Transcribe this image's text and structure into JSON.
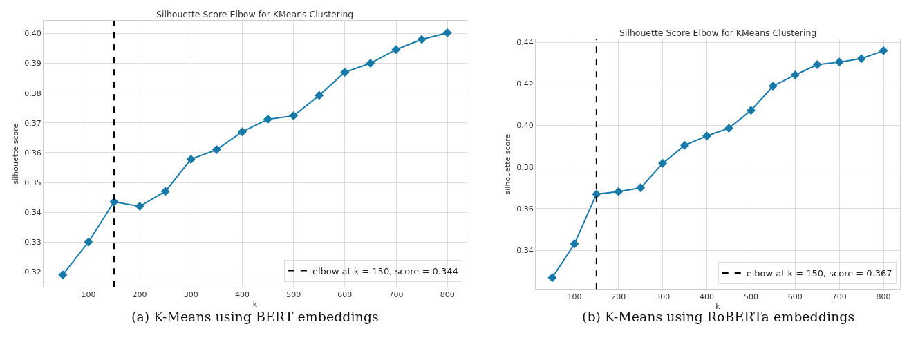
{
  "chart_data": [
    {
      "type": "line",
      "title": "Silhouette Score Elbow for KMeans Clustering",
      "xlabel": "k",
      "ylabel": "silhouette score",
      "x": [
        50,
        100,
        150,
        200,
        250,
        300,
        350,
        400,
        450,
        500,
        550,
        600,
        650,
        700,
        750,
        800
      ],
      "series": [
        {
          "color": "#1779a7",
          "values": [
            0.319,
            0.33,
            0.3435,
            0.342,
            0.347,
            0.3578,
            0.361,
            0.367,
            0.3712,
            0.3724,
            0.3792,
            0.387,
            0.39,
            0.3946,
            0.398,
            0.4002
          ]
        }
      ],
      "xlim": [
        12.5,
        837.5
      ],
      "ylim": [
        0.3149,
        0.4043
      ],
      "xticks": [
        100,
        200,
        300,
        400,
        500,
        600,
        700,
        800
      ],
      "yticks": [
        {
          "value": 0.32,
          "label": "0.32"
        },
        {
          "value": 0.33,
          "label": "0.33"
        },
        {
          "value": 0.34,
          "label": "0.34"
        },
        {
          "value": 0.35,
          "label": "0.35"
        },
        {
          "value": 0.36,
          "label": "0.36"
        },
        {
          "value": 0.37,
          "label": "0.37"
        },
        {
          "value": 0.38,
          "label": "0.38"
        },
        {
          "value": 0.39,
          "label": "0.39"
        },
        {
          "value": 0.4,
          "label": "0.40"
        }
      ],
      "grid": true,
      "marker": "diamond",
      "line_style": "solid",
      "legend": "bottom right",
      "ref_lines": [
        {
          "axis": "x",
          "value": 150,
          "label": "elbow at k = 150, score = 0.344",
          "color": "#000000",
          "line_style": "dashed"
        }
      ],
      "annotations": [
        "(a) K-Means using BERT embeddings"
      ]
    },
    {
      "type": "line",
      "title": "Silhouette Score Elbow for KMeans Clustering",
      "xlabel": "k",
      "ylabel": "silhouette score",
      "x": [
        50,
        100,
        150,
        200,
        250,
        300,
        350,
        400,
        450,
        500,
        550,
        600,
        650,
        700,
        750,
        800
      ],
      "series": [
        {
          "color": "#1779a7",
          "values": [
            0.3268,
            0.343,
            0.367,
            0.3682,
            0.37,
            0.3818,
            0.3905,
            0.395,
            0.3987,
            0.4073,
            0.419,
            0.4243,
            0.4293,
            0.4305,
            0.4322,
            0.436
          ]
        }
      ],
      "xlim": [
        12.5,
        837.5
      ],
      "ylim": [
        0.3213,
        0.4415
      ],
      "xticks": [
        100,
        200,
        300,
        400,
        500,
        600,
        700,
        800
      ],
      "yticks": [
        {
          "value": 0.34,
          "label": "0.34"
        },
        {
          "value": 0.36,
          "label": "0.36"
        },
        {
          "value": 0.38,
          "label": "0.38"
        },
        {
          "value": 0.4,
          "label": "0.40"
        },
        {
          "value": 0.42,
          "label": "0.42"
        },
        {
          "value": 0.44,
          "label": "0.44"
        }
      ],
      "grid": true,
      "marker": "diamond",
      "line_style": "solid",
      "legend": "bottom right",
      "ref_lines": [
        {
          "axis": "x",
          "value": 150,
          "label": "elbow at k = 150, score = 0.367",
          "color": "#000000",
          "line_style": "dashed"
        }
      ],
      "annotations": [
        "(b) K-Means using RoBERTa embeddings"
      ]
    }
  ]
}
